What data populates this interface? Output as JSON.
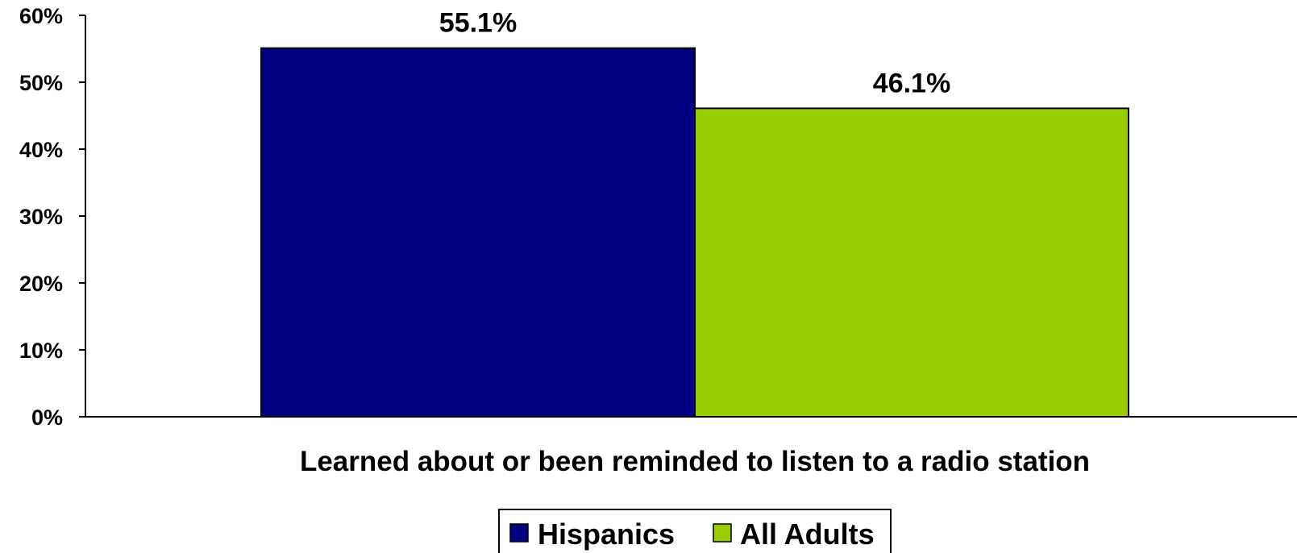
{
  "chart_data": {
    "type": "bar",
    "title": "",
    "xlabel": "",
    "ylabel": "",
    "categories": [
      "Learned about or been reminded to listen to a radio station"
    ],
    "series": [
      {
        "name": "Hispanics",
        "values": [
          55.1
        ],
        "color": "#000080"
      },
      {
        "name": "All Adults",
        "values": [
          46.1
        ],
        "color": "#99CC00"
      }
    ],
    "data_labels": [
      "55.1%",
      "46.1%"
    ],
    "ylim": [
      0,
      60
    ],
    "y_ticks": [
      "0%",
      "10%",
      "20%",
      "30%",
      "40%",
      "50%",
      "60%"
    ],
    "grid": false,
    "legend_position": "bottom"
  }
}
